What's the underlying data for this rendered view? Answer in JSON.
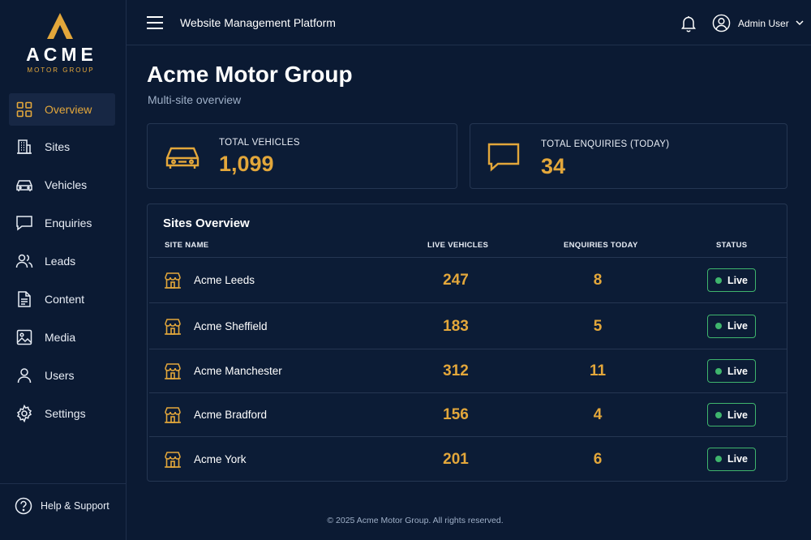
{
  "brand": {
    "name": "ACME",
    "tagline": "MOTOR GROUP",
    "accent": "#e3a73b"
  },
  "sidebar": {
    "items": [
      {
        "label": "Overview",
        "icon": "grid-icon",
        "active": true
      },
      {
        "label": "Sites",
        "icon": "building-icon"
      },
      {
        "label": "Vehicles",
        "icon": "car-icon"
      },
      {
        "label": "Enquiries",
        "icon": "chat-icon"
      },
      {
        "label": "Leads",
        "icon": "users-icon"
      },
      {
        "label": "Content",
        "icon": "document-icon"
      },
      {
        "label": "Media",
        "icon": "image-icon"
      },
      {
        "label": "Users",
        "icon": "user-icon"
      },
      {
        "label": "Settings",
        "icon": "gear-icon"
      }
    ],
    "help_label": "Help & Support"
  },
  "header": {
    "title": "Website Management Platform",
    "user_name": "Admin User"
  },
  "page": {
    "title": "Acme Motor Group",
    "subtitle": "Multi-site overview"
  },
  "stats": [
    {
      "label": "TOTAL VEHICLES",
      "value": "1,099",
      "icon": "car-icon"
    },
    {
      "label": "TOTAL ENQUIRIES (TODAY)",
      "value": "34",
      "icon": "chat-icon"
    }
  ],
  "sites_table": {
    "title": "Sites Overview",
    "columns": [
      "SITE NAME",
      "LIVE VEHICLES",
      "ENQUIRIES TODAY",
      "STATUS"
    ],
    "rows": [
      {
        "name": "Acme Leeds",
        "vehicles": "247",
        "enquiries": "8",
        "status": "Live"
      },
      {
        "name": "Acme Sheffield",
        "vehicles": "183",
        "enquiries": "5",
        "status": "Live"
      },
      {
        "name": "Acme Manchester",
        "vehicles": "312",
        "enquiries": "11",
        "status": "Live"
      },
      {
        "name": "Acme Bradford",
        "vehicles": "156",
        "enquiries": "4",
        "status": "Live"
      },
      {
        "name": "Acme York",
        "vehicles": "201",
        "enquiries": "6",
        "status": "Live"
      }
    ]
  },
  "footer": {
    "text": "© 2025 Acme Motor Group. All rights reserved."
  }
}
